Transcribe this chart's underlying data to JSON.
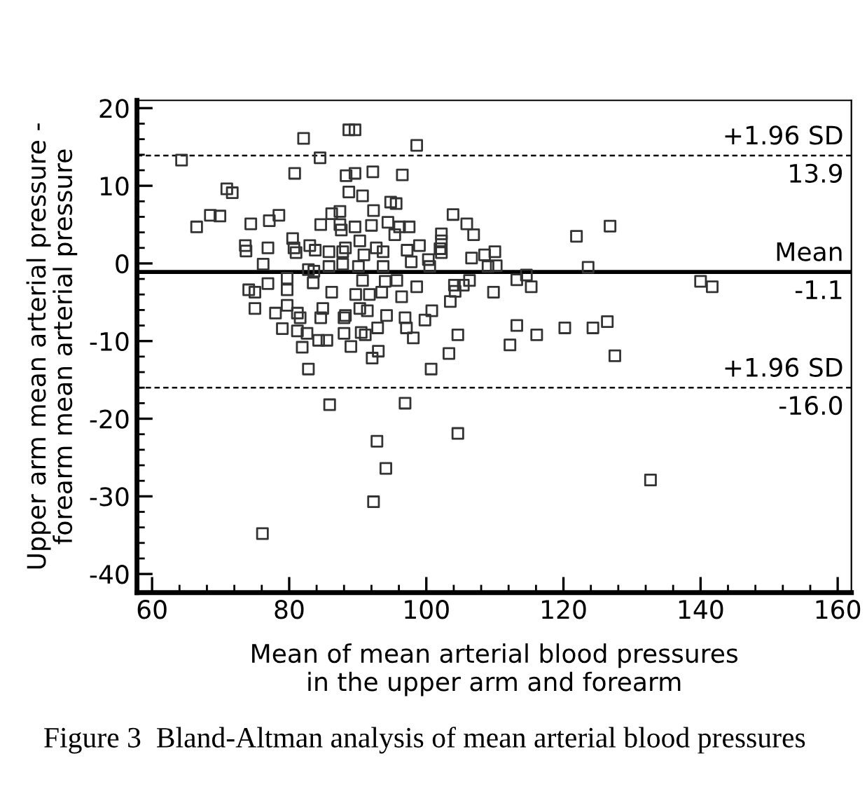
{
  "chart_data": {
    "type": "scatter",
    "xlabel": "Mean of mean arterial blood pressures\nin the upper arm and forearm",
    "ylabel": "Upper arm mean arterial pressure -\nforearm mean arterial pressure",
    "annotations": [
      "Figure 3  Bland-Altman analysis of mean arterial blood pressures"
    ],
    "xlim": [
      57.8,
      162
    ],
    "ylim": [
      -42.4,
      21
    ],
    "xticks": [
      60,
      {
        "value": 64,
        "label": null
      },
      {
        "value": 68,
        "label": null
      },
      {
        "value": 72,
        "label": null
      },
      {
        "value": 76,
        "label": null
      },
      80,
      {
        "value": 84,
        "label": null
      },
      {
        "value": 88,
        "label": null
      },
      {
        "value": 92,
        "label": null
      },
      {
        "value": 96,
        "label": null
      },
      100,
      {
        "value": 104,
        "label": null
      },
      {
        "value": 108,
        "label": null
      },
      {
        "value": 112,
        "label": null
      },
      {
        "value": 116,
        "label": null
      },
      120,
      {
        "value": 124,
        "label": null
      },
      {
        "value": 128,
        "label": null
      },
      {
        "value": 132,
        "label": null
      },
      {
        "value": 136,
        "label": null
      },
      140,
      {
        "value": 144,
        "label": null
      },
      {
        "value": 148,
        "label": null
      },
      {
        "value": 152,
        "label": null
      },
      {
        "value": 156,
        "label": null
      },
      160
    ],
    "yticks": [
      {
        "value": -40,
        "label": "-40"
      },
      {
        "value": -38,
        "label": null
      },
      {
        "value": -36,
        "label": null
      },
      {
        "value": -34,
        "label": null
      },
      {
        "value": -32,
        "label": null
      },
      {
        "value": -30,
        "label": "-30"
      },
      {
        "value": -28,
        "label": null
      },
      {
        "value": -26,
        "label": null
      },
      {
        "value": -24,
        "label": null
      },
      {
        "value": -22,
        "label": null
      },
      {
        "value": -20,
        "label": "-20"
      },
      {
        "value": -18,
        "label": null
      },
      {
        "value": -16,
        "label": null
      },
      {
        "value": -14,
        "label": null
      },
      {
        "value": -12,
        "label": null
      },
      {
        "value": -10,
        "label": "-10"
      },
      {
        "value": -8,
        "label": null
      },
      {
        "value": -6,
        "label": null
      },
      {
        "value": -4,
        "label": null
      },
      {
        "value": -2,
        "label": null
      },
      0,
      {
        "value": 2,
        "label": null
      },
      {
        "value": 4,
        "label": null
      },
      {
        "value": 6,
        "label": null
      },
      {
        "value": 8,
        "label": null
      },
      10,
      {
        "value": 12,
        "label": null
      },
      {
        "value": 14,
        "label": null
      },
      {
        "value": 16,
        "label": null
      },
      {
        "value": 18,
        "label": null
      },
      20
    ],
    "ref_lines": [
      {
        "axis": "y",
        "value": 13.9,
        "label": "+1.96 SD\n13.9",
        "line_style": "dashed",
        "color": "#000000"
      },
      {
        "axis": "y",
        "value": -1.1,
        "label": "Mean\n-1.1",
        "line_style": "solid",
        "color": "#000000"
      },
      {
        "axis": "y",
        "value": -16.0,
        "label": "+1.96 SD\n-16.0",
        "line_style": "dashed",
        "color": "#000000"
      }
    ],
    "grid": false,
    "marker": "square",
    "series": [
      {
        "color": "#333333",
        "x": [
          64.3,
          66.5,
          68.5,
          69.9,
          70.9,
          71.7,
          73.6,
          73.7,
          74.4,
          76.2,
          76.9,
          77.1,
          78.5,
          74.1,
          75.0,
          75.0,
          76.9,
          78.0,
          79.0,
          79.7,
          79.7,
          79.7,
          80.5,
          80.7,
          80.8,
          81.0,
          81.2,
          81.2,
          81.6,
          81.9,
          82.1,
          82.6,
          82.8,
          82.8,
          83.0,
          83.5,
          83.6,
          83.8,
          84.5,
          84.6,
          84.6,
          84.9,
          84.3,
          85.5,
          85.8,
          85.8,
          86.2,
          86.2,
          87.4,
          87.4,
          87.6,
          87.8,
          87.8,
          88.0,
          88.0,
          88.2,
          88.2,
          88.3,
          88.7,
          88.7,
          89.0,
          89.6,
          89.6,
          89.6,
          89.7,
          90.1,
          90.3,
          90.3,
          90.5,
          90.7,
          90.7,
          90.9,
          91.1,
          91.4,
          91.7,
          92.0,
          92.2,
          92.1,
          92.3,
          92.7,
          92.9,
          93.0,
          93.5,
          93.7,
          93.7,
          94.0,
          94.2,
          94.4,
          94.8,
          95.4,
          95.6,
          95.7,
          96.1,
          96.4,
          96.5,
          96.9,
          96.9,
          97.1,
          97.2,
          97.5,
          97.8,
          98.1,
          98.6,
          98.6,
          99.0,
          99.8,
          100.3,
          100.5,
          100.7,
          100.8,
          102.0,
          102.2,
          102.2,
          102.2,
          103.3,
          103.5,
          103.9,
          104.1,
          104.2,
          104.6,
          105.4,
          105.9,
          106.3,
          106.6,
          106.9,
          85.9,
          92.8,
          94.1,
          92.3,
          104.6,
          76.1,
          108.5,
          110.0,
          109.0,
          110.2,
          109.8,
          113.2,
          114.6,
          115.3,
          113.2,
          112.2,
          116.1,
          120.2,
          121.9,
          123.6,
          124.3,
          126.4,
          126.8,
          127.5,
          132.7,
          140.0,
          141.7
        ],
        "values": [
          13.3,
          4.7,
          6.2,
          6.1,
          9.6,
          9.1,
          2.3,
          1.6,
          5.1,
          -0.1,
          2.0,
          5.5,
          6.2,
          -3.4,
          -3.7,
          -5.8,
          -2.6,
          -6.4,
          -8.4,
          -3.4,
          -5.4,
          -1.9,
          3.2,
          2.0,
          11.6,
          1.4,
          -6.4,
          -8.7,
          -7.0,
          -10.8,
          16.1,
          -9.0,
          -13.6,
          -0.8,
          2.3,
          -2.5,
          -1.0,
          1.7,
          13.6,
          5.0,
          -7.0,
          -5.8,
          -9.9,
          -9.9,
          1.5,
          -0.4,
          -3.7,
          6.4,
          6.7,
          5.0,
          4.3,
          1.5,
          -0.1,
          -7.0,
          -9.0,
          -6.7,
          2.0,
          11.3,
          17.2,
          9.2,
          -10.7,
          17.2,
          11.6,
          4.7,
          -4.0,
          -0.4,
          2.9,
          -5.8,
          -8.9,
          8.7,
          -2.2,
          1.1,
          -9.2,
          -6.1,
          -4.0,
          4.9,
          11.8,
          -12.2,
          6.8,
          2.0,
          -8.3,
          -11.3,
          -3.7,
          -0.4,
          1.5,
          -2.3,
          -6.7,
          5.3,
          7.9,
          3.7,
          7.7,
          -2.2,
          4.7,
          -4.3,
          11.4,
          -7.0,
          -18.0,
          -8.3,
          1.7,
          4.7,
          0.2,
          -9.6,
          15.2,
          -3.0,
          2.3,
          -7.3,
          0.5,
          -0.4,
          -13.6,
          -6.1,
          1.9,
          3.8,
          2.9,
          1.4,
          -11.6,
          -4.9,
          6.3,
          -2.8,
          -3.6,
          -9.2,
          -2.8,
          5.1,
          -2.2,
          0.7,
          3.7,
          -18.2,
          -22.9,
          -26.4,
          -30.7,
          -21.9,
          -34.8,
          1.1,
          1.5,
          -0.4,
          -0.3,
          -3.7,
          -2.1,
          -1.5,
          -3.0,
          -8.0,
          -10.5,
          -9.2,
          -8.3,
          3.5,
          -0.5,
          -8.3,
          -7.5,
          4.8,
          -11.9,
          -27.9,
          -2.3,
          -3.0
        ]
      }
    ]
  }
}
